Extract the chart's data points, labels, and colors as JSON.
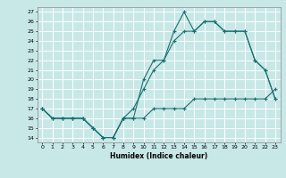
{
  "title": "",
  "xlabel": "Humidex (Indice chaleur)",
  "bg_color": "#c8e8e8",
  "grid_color": "#ffffff",
  "line_color": "#1a7070",
  "xlim": [
    -0.5,
    23.5
  ],
  "ylim": [
    13.5,
    27.5
  ],
  "yticks": [
    14,
    15,
    16,
    17,
    18,
    19,
    20,
    21,
    22,
    23,
    24,
    25,
    26,
    27
  ],
  "xticks": [
    0,
    1,
    2,
    3,
    4,
    5,
    6,
    7,
    8,
    9,
    10,
    11,
    12,
    13,
    14,
    15,
    16,
    17,
    18,
    19,
    20,
    21,
    22,
    23
  ],
  "line1_x": [
    0,
    1,
    2,
    3,
    4,
    5,
    6,
    7,
    8,
    9,
    10,
    11,
    12,
    13,
    14,
    15,
    16,
    17,
    18,
    19,
    20,
    21,
    22,
    23
  ],
  "line1_y": [
    17,
    16,
    16,
    16,
    16,
    15,
    14,
    14,
    16,
    16,
    20,
    22,
    22,
    25,
    27,
    25,
    26,
    26,
    25,
    25,
    25,
    22,
    21,
    18
  ],
  "line2_x": [
    0,
    1,
    2,
    3,
    4,
    5,
    6,
    7,
    8,
    9,
    10,
    11,
    12,
    13,
    14,
    15,
    16,
    17,
    18,
    19,
    20,
    21,
    22,
    23
  ],
  "line2_y": [
    17,
    16,
    16,
    16,
    16,
    15,
    14,
    14,
    16,
    16,
    16,
    17,
    17,
    17,
    17,
    18,
    18,
    18,
    18,
    18,
    18,
    18,
    18,
    19
  ],
  "line3_x": [
    0,
    1,
    2,
    3,
    4,
    5,
    6,
    7,
    8,
    9,
    10,
    11,
    12,
    13,
    14,
    15,
    16,
    17,
    18,
    19,
    20,
    21,
    22,
    23
  ],
  "line3_y": [
    17,
    16,
    16,
    16,
    16,
    15,
    14,
    14,
    16,
    17,
    19,
    21,
    22,
    24,
    25,
    25,
    26,
    26,
    25,
    25,
    25,
    22,
    21,
    18
  ]
}
